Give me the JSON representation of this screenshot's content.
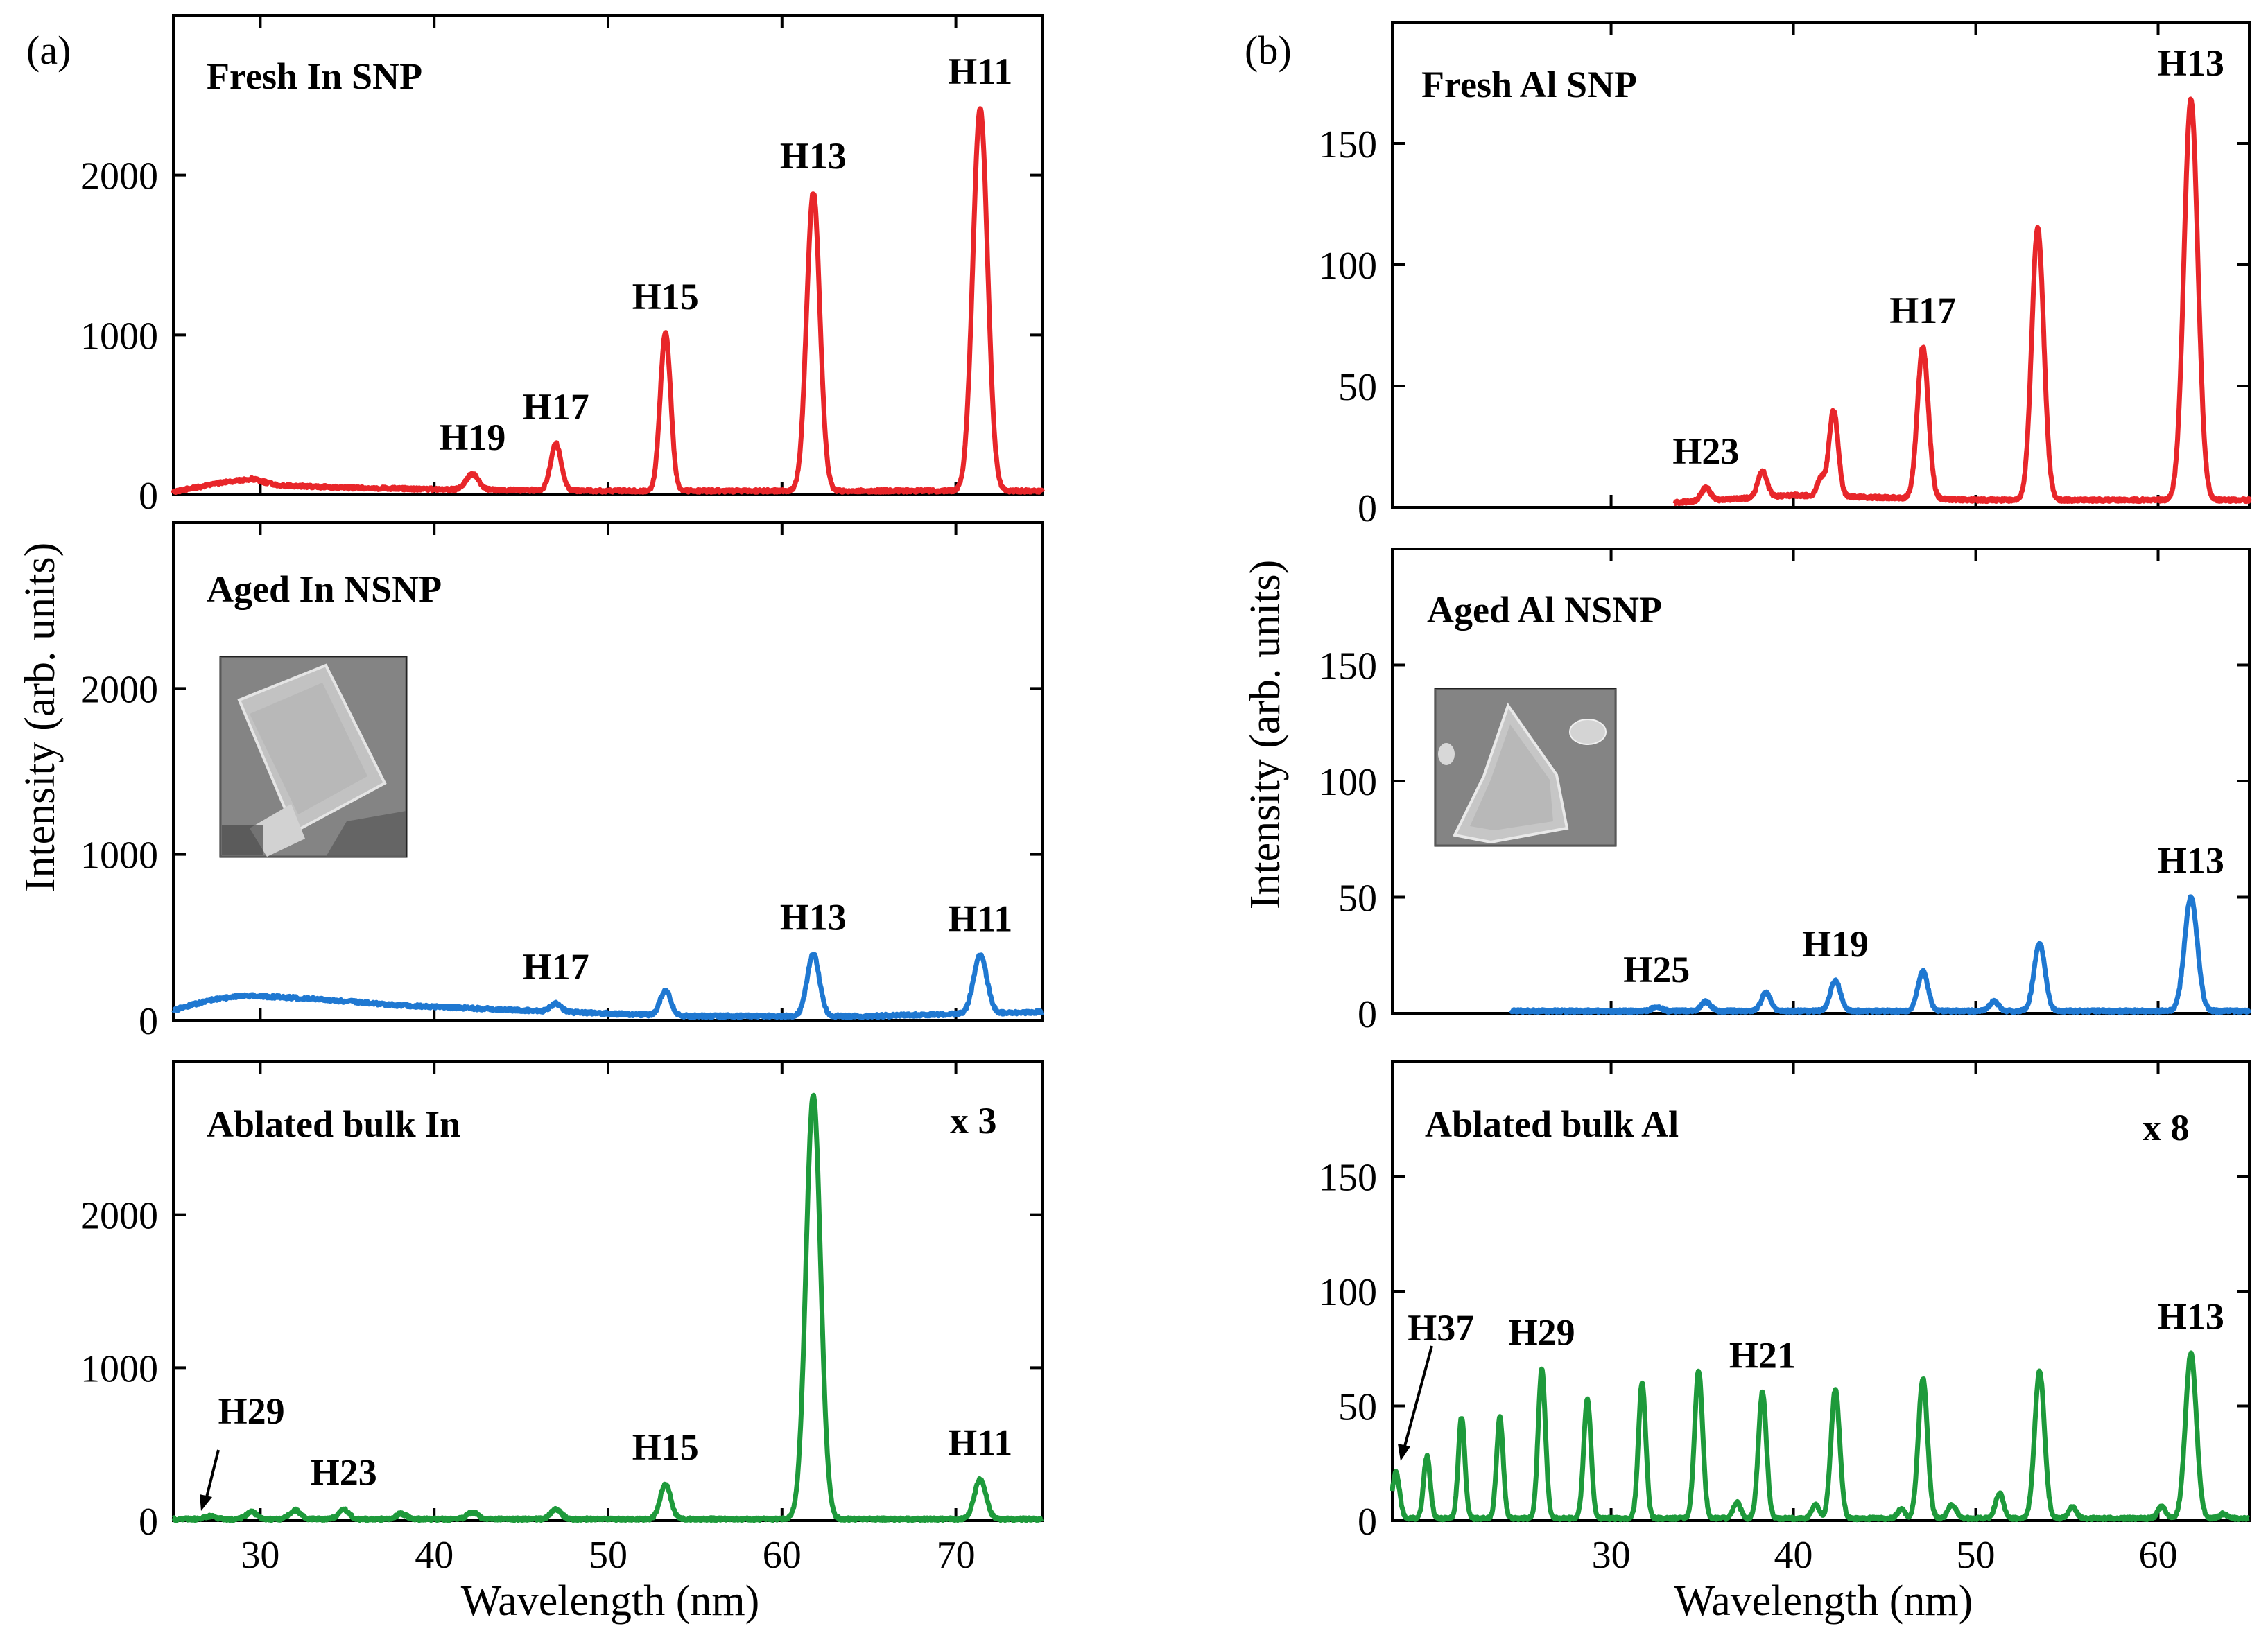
{
  "chart_data": [
    {
      "panel_label": "(a)",
      "type": "line",
      "xlabel": "Wavelength (nm)",
      "ylabel": "Intensity (arb. units)",
      "xlim": [
        25,
        75
      ],
      "xticks": [
        "30",
        "40",
        "50",
        "60",
        "70"
      ],
      "subplots": [
        {
          "id": "fresh-in",
          "title": "Fresh In SNP",
          "color": "#e8262a",
          "ylim": [
            0,
            3000
          ],
          "yticks": [
            "0",
            "1000",
            "2000"
          ],
          "baseline": [
            [
              25,
              20
            ],
            [
              28,
              80
            ],
            [
              29.5,
              100
            ],
            [
              31,
              60
            ],
            [
              35,
              45
            ],
            [
              40,
              35
            ],
            [
              50,
              25
            ],
            [
              60,
              25
            ],
            [
              75,
              25
            ]
          ],
          "peaks": [
            {
              "label": "H19",
              "x": 42.2,
              "y": 130,
              "width": 0.35
            },
            {
              "label": "H17",
              "x": 47.0,
              "y": 320,
              "width": 0.3
            },
            {
              "label": "H15",
              "x": 53.3,
              "y": 1010,
              "width": 0.3
            },
            {
              "label": "H13",
              "x": 61.8,
              "y": 1890,
              "width": 0.38
            },
            {
              "label": "H11",
              "x": 71.4,
              "y": 2420,
              "width": 0.42
            }
          ],
          "annotations": []
        },
        {
          "id": "aged-in",
          "title": "Aged In NSNP",
          "color": "#1f78d1",
          "ylim": [
            0,
            3000
          ],
          "yticks": [
            "0",
            "1000",
            "2000"
          ],
          "has_inset": true,
          "baseline": [
            [
              25,
              60
            ],
            [
              27,
              120
            ],
            [
              29,
              150
            ],
            [
              33,
              130
            ],
            [
              38,
              90
            ],
            [
              45,
              60
            ],
            [
              50,
              40
            ],
            [
              55,
              25
            ],
            [
              65,
              25
            ],
            [
              75,
              50
            ]
          ],
          "peaks": [
            {
              "label": "",
              "x": 45.8,
              "y": 30,
              "width": 0.3
            },
            {
              "label": "H17",
              "x": 47.0,
              "y": 100,
              "width": 0.3
            },
            {
              "label": "",
              "x": 53.3,
              "y": 180,
              "width": 0.3
            },
            {
              "label": "H13",
              "x": 61.8,
              "y": 400,
              "width": 0.35
            },
            {
              "label": "H11",
              "x": 71.4,
              "y": 390,
              "width": 0.38
            }
          ],
          "annotations": []
        },
        {
          "id": "bulk-in",
          "title": "Ablated bulk In",
          "multiplier": "x 3",
          "color": "#1e9a3b",
          "ylim": [
            0,
            3000
          ],
          "yticks": [
            "0",
            "1000",
            "2000"
          ],
          "baseline": [
            [
              25,
              10
            ],
            [
              50,
              10
            ],
            [
              75,
              10
            ]
          ],
          "peaks": [
            {
              "label": "H29",
              "x": 27.1,
              "y": 30,
              "width": 0.3
            },
            {
              "label": "",
              "x": 29.5,
              "y": 55,
              "width": 0.3
            },
            {
              "label": "",
              "x": 32.0,
              "y": 70,
              "width": 0.3
            },
            {
              "label": "H23",
              "x": 34.8,
              "y": 75,
              "width": 0.3
            },
            {
              "label": "",
              "x": 38.1,
              "y": 45,
              "width": 0.3
            },
            {
              "label": "",
              "x": 42.2,
              "y": 55,
              "width": 0.3
            },
            {
              "label": "",
              "x": 47.0,
              "y": 75,
              "width": 0.3
            },
            {
              "label": "H15",
              "x": 53.3,
              "y": 240,
              "width": 0.3
            },
            {
              "label": "",
              "x": 61.8,
              "y": 2780,
              "width": 0.42
            },
            {
              "label": "H11",
              "x": 71.4,
              "y": 270,
              "width": 0.33
            }
          ],
          "annotations": [
            {
              "text": "H29",
              "points_to_x": 27.1
            }
          ]
        }
      ]
    },
    {
      "panel_label": "(b)",
      "type": "line",
      "xlabel": "Wavelength (nm)",
      "ylabel": "Intensity (arb. units)",
      "xlim": [
        18,
        65
      ],
      "xticks": [
        "30",
        "40",
        "50",
        "60"
      ],
      "subplots": [
        {
          "id": "fresh-al",
          "title": "Fresh Al SNP",
          "color": "#e8262a",
          "ylim": [
            0,
            200
          ],
          "yticks": [
            "0",
            "50",
            "100",
            "150"
          ],
          "x_range": [
            33.5,
            65
          ],
          "baseline": [
            [
              33.5,
              2
            ],
            [
              40,
              5
            ],
            [
              50,
              3
            ],
            [
              65,
              3
            ]
          ],
          "peaks": [
            {
              "label": "H23",
              "x": 35.2,
              "y": 8,
              "width": 0.25
            },
            {
              "label": "",
              "x": 38.3,
              "y": 15,
              "width": 0.25
            },
            {
              "label": "",
              "x": 41.5,
              "y": 12,
              "width": 0.2
            },
            {
              "label": "",
              "x": 42.2,
              "y": 40,
              "width": 0.25
            },
            {
              "label": "H17",
              "x": 47.1,
              "y": 66,
              "width": 0.3
            },
            {
              "label": "",
              "x": 53.4,
              "y": 115,
              "width": 0.33
            },
            {
              "label": "H13",
              "x": 61.8,
              "y": 168,
              "width": 0.38
            }
          ],
          "annotations": []
        },
        {
          "id": "aged-al",
          "title": "Aged Al NSNP",
          "color": "#1f78d1",
          "ylim": [
            0,
            200
          ],
          "yticks": [
            "0",
            "50",
            "100",
            "150"
          ],
          "has_inset": true,
          "x_range": [
            24.5,
            65
          ],
          "baseline": [
            [
              24.5,
              1
            ],
            [
              45,
              1
            ],
            [
              65,
              1
            ]
          ],
          "peaks": [
            {
              "label": "H25",
              "x": 32.5,
              "y": 3,
              "width": 0.25
            },
            {
              "label": "",
              "x": 35.2,
              "y": 5,
              "width": 0.25
            },
            {
              "label": "",
              "x": 38.5,
              "y": 9,
              "width": 0.25
            },
            {
              "label": "H19",
              "x": 42.3,
              "y": 14,
              "width": 0.28
            },
            {
              "label": "",
              "x": 47.1,
              "y": 18,
              "width": 0.28
            },
            {
              "label": "",
              "x": 51.0,
              "y": 5,
              "width": 0.25
            },
            {
              "label": "",
              "x": 53.5,
              "y": 30,
              "width": 0.3
            },
            {
              "label": "H13",
              "x": 61.8,
              "y": 50,
              "width": 0.35
            }
          ],
          "annotations": []
        },
        {
          "id": "bulk-al",
          "title": "Ablated bulk Al",
          "multiplier": "x 8",
          "color": "#1e9a3b",
          "ylim": [
            0,
            200
          ],
          "yticks": [
            "0",
            "50",
            "100",
            "150"
          ],
          "baseline": [
            [
              18,
              1
            ],
            [
              65,
              1
            ]
          ],
          "peaks": [
            {
              "label": "H37",
              "x": 18.2,
              "y": 21,
              "width": 0.2
            },
            {
              "label": "",
              "x": 19.9,
              "y": 28,
              "width": 0.18
            },
            {
              "label": "",
              "x": 21.8,
              "y": 45,
              "width": 0.18
            },
            {
              "label": "",
              "x": 23.9,
              "y": 45,
              "width": 0.18
            },
            {
              "label": "H29",
              "x": 26.2,
              "y": 66,
              "width": 0.2
            },
            {
              "label": "",
              "x": 28.7,
              "y": 53,
              "width": 0.2
            },
            {
              "label": "",
              "x": 31.7,
              "y": 60,
              "width": 0.2
            },
            {
              "label": "",
              "x": 34.8,
              "y": 65,
              "width": 0.22
            },
            {
              "label": "",
              "x": 36.9,
              "y": 8,
              "width": 0.2
            },
            {
              "label": "H21",
              "x": 38.3,
              "y": 56,
              "width": 0.22
            },
            {
              "label": "",
              "x": 41.2,
              "y": 7,
              "width": 0.2
            },
            {
              "label": "",
              "x": 42.3,
              "y": 57,
              "width": 0.24
            },
            {
              "label": "",
              "x": 45.9,
              "y": 5,
              "width": 0.2
            },
            {
              "label": "",
              "x": 47.1,
              "y": 62,
              "width": 0.25
            },
            {
              "label": "",
              "x": 48.7,
              "y": 7,
              "width": 0.22
            },
            {
              "label": "",
              "x": 51.3,
              "y": 12,
              "width": 0.22
            },
            {
              "label": "",
              "x": 53.5,
              "y": 65,
              "width": 0.27
            },
            {
              "label": "",
              "x": 55.3,
              "y": 6,
              "width": 0.22
            },
            {
              "label": "",
              "x": 60.2,
              "y": 6,
              "width": 0.22
            },
            {
              "label": "H13",
              "x": 61.8,
              "y": 73,
              "width": 0.3
            },
            {
              "label": "",
              "x": 63.6,
              "y": 3,
              "width": 0.22
            }
          ],
          "annotations": [
            {
              "text": "H37",
              "points_to_x": 18.3
            }
          ]
        }
      ]
    }
  ]
}
